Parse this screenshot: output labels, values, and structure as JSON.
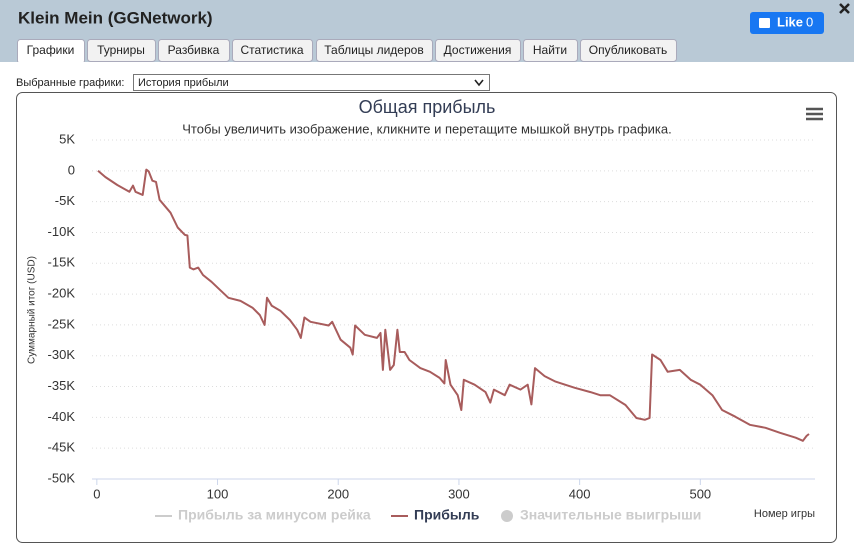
{
  "window": {
    "title": "Klein Mein (GGNetwork)",
    "like": "Like",
    "like_count": 0
  },
  "tabs": [
    "Графики",
    "Турниры",
    "Разбивка",
    "Статистика",
    "Таблицы лидеров",
    "Достижения",
    "Найти",
    "Опубликовать"
  ],
  "active_tab": 0,
  "selector": {
    "label": "Выбранные графики:",
    "value": "История прибыли"
  },
  "chart_data": {
    "type": "line",
    "title": "Общая прибыль",
    "subtitle": "Чтобы увеличить изображение, кликните и перетащите мышкой внутрь графика.",
    "y_label": "Суммарный итог (USD)",
    "x_label": "Номер игры",
    "xlim": [
      -4,
      595
    ],
    "xticks": [
      0,
      100,
      200,
      300,
      400,
      500
    ],
    "ylim": [
      -50000,
      5000
    ],
    "yticks": [
      {
        "value": 5000,
        "label": "5K"
      },
      0,
      {
        "value": -5000,
        "label": "-5K"
      },
      {
        "value": -10000,
        "label": "-10K"
      },
      {
        "value": -15000,
        "label": "-15K"
      },
      {
        "value": -20000,
        "label": "-20K"
      },
      {
        "value": -25000,
        "label": "-25K"
      },
      {
        "value": -30000,
        "label": "-30K"
      },
      {
        "value": -35000,
        "label": "-35K"
      },
      {
        "value": -40000,
        "label": "-40K"
      },
      {
        "value": -45000,
        "label": "-45K"
      },
      {
        "value": -50000,
        "label": "-50K"
      }
    ],
    "grid": true,
    "x": [
      1,
      7,
      17,
      27,
      30,
      32,
      38,
      41,
      43,
      46,
      49,
      52,
      61,
      67,
      73,
      75,
      77,
      80,
      84,
      88,
      95,
      102,
      109,
      119,
      129,
      135,
      139,
      141,
      145,
      152,
      160,
      166,
      169,
      172,
      177,
      192,
      195,
      202,
      210,
      212,
      214,
      222,
      232,
      235,
      237,
      239,
      243,
      246,
      249,
      251,
      255,
      259,
      268,
      276,
      284,
      288,
      289,
      293,
      299,
      302,
      304,
      313,
      322,
      326,
      329,
      338,
      342,
      351,
      357,
      360,
      363,
      371,
      380,
      388,
      396,
      409,
      417,
      425,
      438,
      447,
      454,
      458,
      460,
      467,
      473,
      483,
      492,
      500,
      510,
      518,
      529,
      541,
      554,
      566,
      579,
      585,
      588,
      590
    ],
    "series": [
      {
        "name": "Прибыль за минусом рейка",
        "color": "#cccccc",
        "symbol": "line",
        "visible": false
      },
      {
        "name": "Прибыль",
        "color": "#a85c5c",
        "symbol": "line",
        "visible": true,
        "values": [
          0,
          -1000,
          -2300,
          -3400,
          -2400,
          -3400,
          -3900,
          200,
          -100,
          -1600,
          -1800,
          -4700,
          -6800,
          -9200,
          -10400,
          -10500,
          -15700,
          -16000,
          -15700,
          -16900,
          -18000,
          -19300,
          -20600,
          -21100,
          -22200,
          -23400,
          -25000,
          -20600,
          -21900,
          -22700,
          -24200,
          -25800,
          -27100,
          -23800,
          -24500,
          -25100,
          -24500,
          -27400,
          -28700,
          -29800,
          -25100,
          -26600,
          -27100,
          -26300,
          -32300,
          -25800,
          -32300,
          -31500,
          -25800,
          -29400,
          -29400,
          -30700,
          -32000,
          -32600,
          -33600,
          -34500,
          -30700,
          -34700,
          -36400,
          -38800,
          -33900,
          -34700,
          -35900,
          -37600,
          -35500,
          -36400,
          -34700,
          -35500,
          -34700,
          -37900,
          -32000,
          -33300,
          -34200,
          -34700,
          -35200,
          -35900,
          -36400,
          -36400,
          -38000,
          -40100,
          -40400,
          -40100,
          -29800,
          -30700,
          -32600,
          -32300,
          -33900,
          -34700,
          -36400,
          -38800,
          -39900,
          -41200,
          -41700,
          -42500,
          -43300,
          -43800,
          -43000,
          -42700
        ]
      },
      {
        "name": "Значительные выигрыши",
        "color": "#cccccc",
        "symbol": "circle",
        "visible": false
      }
    ]
  }
}
